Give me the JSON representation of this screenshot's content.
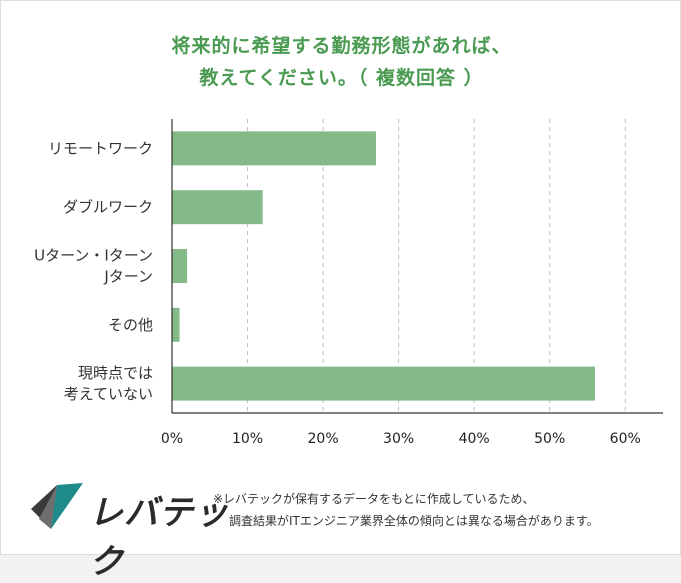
{
  "title_lines": [
    "将来的に希望する勤務形態があれば、",
    "教えてください。（ 複数回答 ）"
  ],
  "colors": {
    "title": "#4a9a52",
    "bar": "#84ba88",
    "grid": "#bdbdbd",
    "axis": "#333333",
    "logo_teal": "#1f8a8a",
    "logo_dark": "#3a3a3a"
  },
  "chart_data": {
    "type": "bar",
    "orientation": "horizontal",
    "categories": [
      [
        "リモートワーク"
      ],
      [
        "ダブルワーク"
      ],
      [
        "Uターン・Iターン",
        "Jターン"
      ],
      [
        "その他"
      ],
      [
        "現時点では",
        "考えていない"
      ]
    ],
    "values": [
      27,
      12,
      2,
      1,
      56
    ],
    "unit": "%",
    "xlim": [
      0,
      65
    ],
    "xticks": [
      0,
      10,
      20,
      30,
      40,
      50,
      60
    ],
    "xtick_labels": [
      "0%",
      "10%",
      "20%",
      "30%",
      "40%",
      "50%",
      "60%"
    ],
    "grid": "vertical-dashed"
  },
  "logo": {
    "text": "レバテック"
  },
  "footnote": [
    "※レバテックが保有するデータをもとに作成しているため、",
    "調査結果がITエンジニア業界全体の傾向とは異なる場合があります。"
  ]
}
